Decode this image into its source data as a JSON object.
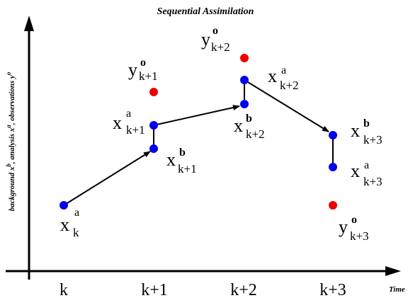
{
  "title": "Sequential Assimilation",
  "ylabel": {
    "p1": "background x",
    "p1_sup": "b",
    "p2": ", analysis x",
    "p2_sup": "a",
    "p3": ", observations y",
    "p3_sup": "o"
  },
  "time_label": "Time",
  "ticks": [
    "k",
    "k+1",
    "k+2",
    "k+3"
  ],
  "colors": {
    "state": "#0000ee",
    "observation": "#ee0000",
    "line": "#000000"
  },
  "labels": {
    "xa_k": {
      "sym": "x",
      "sup": "a",
      "sub": "k"
    },
    "yo_k1": {
      "sym": "y",
      "sup": "o",
      "sub": "k+1"
    },
    "xa_k1": {
      "sym": "x",
      "sup": "a",
      "sub": "k+1"
    },
    "xb_k1": {
      "sym": "x",
      "sup": "b",
      "sub": "k+1"
    },
    "yo_k2": {
      "sym": "y",
      "sup": "o",
      "sub": "k+2"
    },
    "xa_k2": {
      "sym": "x",
      "sup": "a",
      "sub": "k+2"
    },
    "xb_k2": {
      "sym": "x",
      "sup": "b",
      "sub": "k+2"
    },
    "xb_k3": {
      "sym": "x",
      "sup": "b",
      "sub": "k+3"
    },
    "xa_k3": {
      "sym": "x",
      "sup": "a",
      "sub": "k+3"
    },
    "yo_k3": {
      "sym": "y",
      "sup": "o",
      "sub": "k+3"
    }
  }
}
